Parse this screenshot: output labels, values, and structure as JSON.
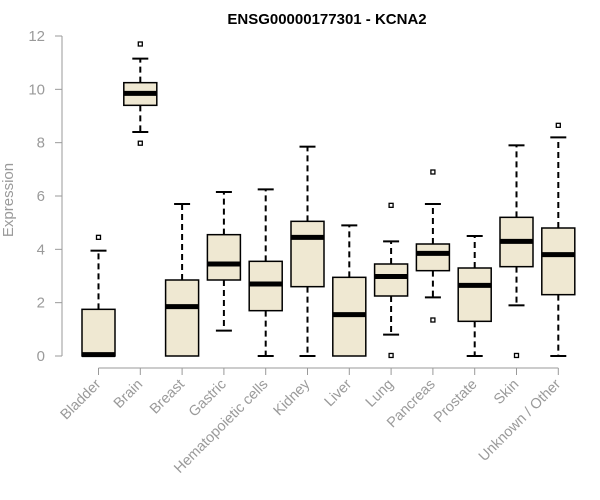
{
  "chart_data": {
    "type": "boxplot",
    "title": "ENSG00000177301 - KCNA2",
    "xlabel": "",
    "ylabel": "Expression",
    "ylim": [
      0,
      12
    ],
    "yticks": [
      0,
      2,
      4,
      6,
      8,
      10,
      12
    ],
    "box_fill": "#efe8d2",
    "categories": [
      "Bladder",
      "Brain",
      "Breast",
      "Gastric",
      "Hematopoietic cells",
      "Kidney",
      "Liver",
      "Lung",
      "Pancreas",
      "Prostate",
      "Skin",
      "Unknown / Other"
    ],
    "boxes": [
      {
        "min": 0,
        "q1": 0,
        "median": 0.05,
        "q3": 1.75,
        "max": 3.95,
        "outliers": [
          4.45
        ]
      },
      {
        "min": 8.4,
        "q1": 9.4,
        "median": 9.85,
        "q3": 10.25,
        "max": 11.15,
        "outliers": [
          11.7,
          7.98
        ]
      },
      {
        "min": 0,
        "q1": 0,
        "median": 1.85,
        "q3": 2.85,
        "max": 5.7,
        "outliers": []
      },
      {
        "min": 0.95,
        "q1": 2.85,
        "median": 3.45,
        "q3": 4.55,
        "max": 6.15,
        "outliers": []
      },
      {
        "min": 0,
        "q1": 1.7,
        "median": 2.7,
        "q3": 3.55,
        "max": 6.25,
        "outliers": []
      },
      {
        "min": 0,
        "q1": 2.6,
        "median": 4.45,
        "q3": 5.05,
        "max": 7.85,
        "outliers": []
      },
      {
        "min": 0,
        "q1": 0,
        "median": 1.55,
        "q3": 2.95,
        "max": 4.9,
        "outliers": []
      },
      {
        "min": 0.8,
        "q1": 2.25,
        "median": 2.98,
        "q3": 3.45,
        "max": 4.3,
        "outliers": [
          5.65,
          0.02
        ]
      },
      {
        "min": 2.2,
        "q1": 3.2,
        "median": 3.85,
        "q3": 4.2,
        "max": 5.7,
        "outliers": [
          6.9,
          1.35
        ]
      },
      {
        "min": 0,
        "q1": 1.3,
        "median": 2.65,
        "q3": 3.3,
        "max": 4.5,
        "outliers": []
      },
      {
        "min": 1.9,
        "q1": 3.35,
        "median": 4.3,
        "q3": 5.2,
        "max": 7.9,
        "outliers": [
          0.02
        ]
      },
      {
        "min": 0,
        "q1": 2.3,
        "median": 3.8,
        "q3": 4.8,
        "max": 8.2,
        "outliers": [
          8.65
        ]
      }
    ]
  }
}
